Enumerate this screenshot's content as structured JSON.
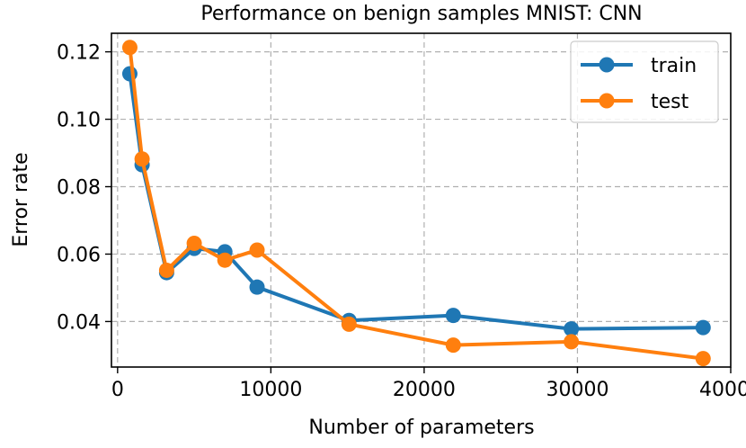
{
  "chart_data": {
    "type": "line",
    "title": "Performance on benign samples MNIST: CNN",
    "xlabel": "Number of parameters",
    "ylabel": "Error rate",
    "xlim": [
      -400,
      40000
    ],
    "ylim": [
      0.0265,
      0.1255
    ],
    "xticks": [
      0,
      10000,
      20000,
      30000,
      40000
    ],
    "xtick_labels": [
      "0",
      "10000",
      "20000",
      "30000",
      "40000"
    ],
    "yticks": [
      0.04,
      0.06,
      0.08,
      0.1,
      0.12
    ],
    "ytick_labels": [
      "0.04",
      "0.06",
      "0.08",
      "0.10",
      "0.12"
    ],
    "grid": true,
    "legend_position": "top-right",
    "series": [
      {
        "name": "train",
        "color": "#1f77b4",
        "x": [
          800,
          1600,
          3200,
          5000,
          7000,
          9100,
          15100,
          21900,
          29600,
          38200
        ],
        "y": [
          0.1135,
          0.0865,
          0.0545,
          0.0617,
          0.0607,
          0.0502,
          0.0403,
          0.0418,
          0.0378,
          0.0382
        ]
      },
      {
        "name": "test",
        "color": "#ff7f0e",
        "x": [
          800,
          1600,
          3200,
          5000,
          7000,
          9100,
          15100,
          21900,
          29600,
          38200
        ],
        "y": [
          0.1213,
          0.0882,
          0.0552,
          0.0632,
          0.0582,
          0.0612,
          0.0392,
          0.033,
          0.034,
          0.029
        ]
      }
    ]
  }
}
